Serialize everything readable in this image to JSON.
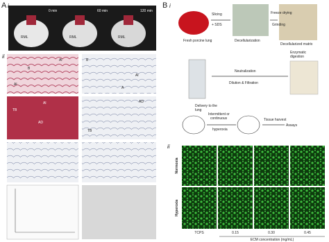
{
  "panel_a": {
    "label": "A",
    "sub_i": "i",
    "times": [
      "0 min",
      "60 min",
      "120 min"
    ],
    "lobe": "RML",
    "sub_ii": "ii",
    "micro_labels": [
      "Al",
      "B",
      "Al",
      "B",
      "Al",
      "A",
      "TB",
      "Al",
      "AD",
      "AD",
      "TB"
    ]
  },
  "panel_b": {
    "label": "B",
    "sub_i": "i",
    "steps": {
      "fresh": "Fresh porcine lung",
      "slicing": "Slicing",
      "sds": "+ SDS",
      "decell": "Decellularization",
      "freeze": "Freeze drying",
      "grinding": "Grinding",
      "matrix": "Decellularized matrix",
      "enzymatic": "Enzymatic",
      "digestion": "digestion",
      "neutralization": "Neutralization",
      "dilution": "Dilution & Filtration",
      "delivery": "Delivery to the",
      "lung": "lung",
      "intermittent": "Intermittent or",
      "continuous": "continuous",
      "hyperoxia": "hyperoxia",
      "harvest": "Tissue harvest",
      "assays": "Assays"
    },
    "sub_ii": "ii",
    "rows": [
      "Normoxia",
      "Hyperoxia"
    ],
    "columns": [
      "TCPS",
      "0.15",
      "0.30",
      "0.45"
    ],
    "x_label": "ECM concentration (mg/mL)"
  }
}
